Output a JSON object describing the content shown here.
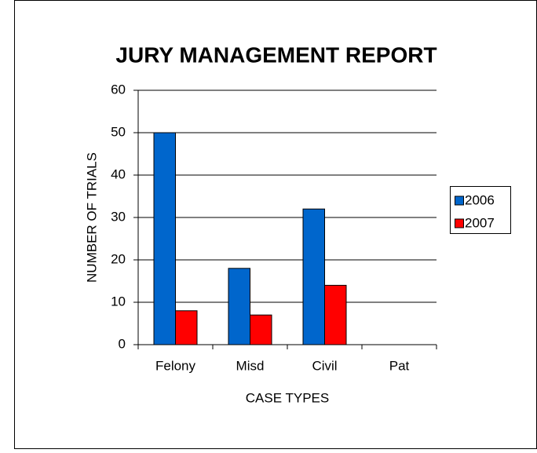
{
  "chart_data": {
    "type": "bar",
    "title": "JURY MANAGEMENT REPORT",
    "categories": [
      "Felony",
      "Misd",
      "Civil",
      "Pat"
    ],
    "series": [
      {
        "name": "2006",
        "color": "#0066cc",
        "values": [
          50,
          18,
          32,
          0
        ]
      },
      {
        "name": "2007",
        "color": "#ff0000",
        "values": [
          8,
          7,
          14,
          0
        ]
      }
    ],
    "xlabel": "CASE TYPES",
    "ylabel": "NUMBER OF TRIALS",
    "ylim": [
      0,
      60
    ],
    "yticks": [
      0,
      10,
      20,
      30,
      40,
      50,
      60
    ],
    "grid": true,
    "legend": "right"
  }
}
